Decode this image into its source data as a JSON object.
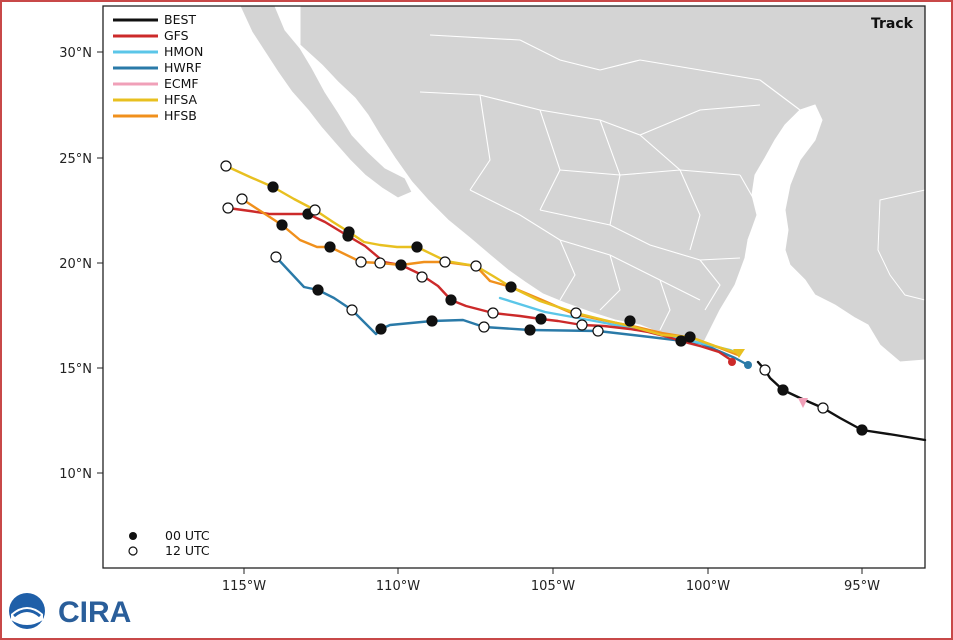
{
  "map": {
    "title": "Track",
    "lat_ticks": [
      "30°N",
      "25°N",
      "20°N",
      "15°N",
      "10°N"
    ],
    "lon_ticks": [
      "115°W",
      "110°W",
      "105°W",
      "100°W",
      "95°W"
    ],
    "legend": [
      {
        "label": "BEST",
        "color": "#111111"
      },
      {
        "label": "GFS",
        "color": "#cc2a2a"
      },
      {
        "label": "HMON",
        "color": "#5bc6e8"
      },
      {
        "label": "HWRF",
        "color": "#2a7aa8"
      },
      {
        "label": "ECMF",
        "color": "#f0a0b8"
      },
      {
        "label": "HFSA",
        "color": "#e8c020"
      },
      {
        "label": "HFSB",
        "color": "#f0901c"
      }
    ],
    "markers": [
      {
        "label": "00 UTC",
        "style": "filled"
      },
      {
        "label": "12 UTC",
        "style": "open"
      }
    ]
  },
  "branding": {
    "logo_text": "CIRA",
    "org_icon": "noaa-logo-icon"
  },
  "colors": {
    "land": "#d4d4d4",
    "ocean": "#ffffff",
    "border": "#ffffff",
    "frame": "#c84848"
  }
}
